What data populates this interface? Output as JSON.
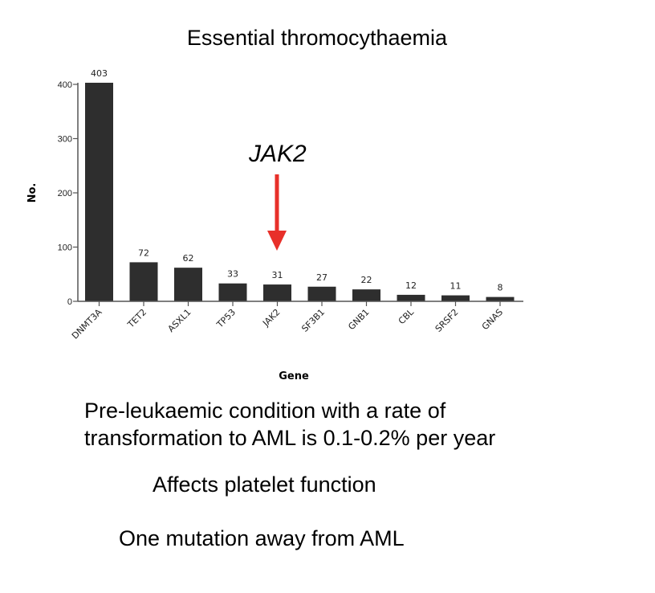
{
  "title": "Essential thromocythaemia",
  "annotation": {
    "label": "JAK2",
    "arrow_color": "#e8302a"
  },
  "notes": [
    "Pre-leukaemic condition with a rate of",
    "transformation to AML is 0.1-0.2% per year",
    "Affects platelet function",
    "One mutation away from AML"
  ],
  "chart_data": {
    "type": "bar",
    "categories": [
      "DNMT3A",
      "TET2",
      "ASXL1",
      "TP53",
      "JAK2",
      "SF3B1",
      "GNB1",
      "CBL",
      "SRSF2",
      "GNAS"
    ],
    "values": [
      403,
      72,
      62,
      33,
      31,
      27,
      22,
      12,
      11,
      8
    ],
    "data_labels": [
      "403",
      "72",
      "62",
      "33",
      "31",
      "27",
      "22",
      "12",
      "11",
      "8"
    ],
    "xlabel": "Gene",
    "ylabel": "No.",
    "ylim": [
      0,
      400
    ],
    "yticks": [
      0,
      100,
      200,
      300,
      400
    ],
    "ytick_labels": [
      "0",
      "100",
      "200",
      "300",
      "400"
    ],
    "bar_color": "#2e2e2e",
    "grid": false,
    "highlighted_category": "JAK2"
  }
}
